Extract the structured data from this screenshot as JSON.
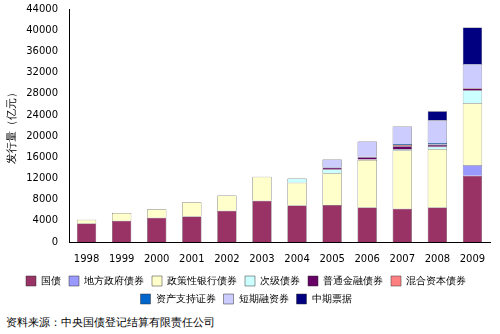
{
  "chart_data": {
    "type": "bar",
    "stacked": true,
    "grid": false,
    "legend": "bottom",
    "y_label": "发行量（亿元）",
    "annotation": "资料来源：中央国债登记结算有限责任公司",
    "categories": [
      "1998",
      "1999",
      "2000",
      "2001",
      "2002",
      "2003",
      "2004",
      "2005",
      "2006",
      "2007",
      "2008",
      "2009"
    ],
    "ylim": [
      0,
      44000
    ],
    "yticks": [
      0,
      4000,
      8000,
      12000,
      16000,
      20000,
      24000,
      28000,
      32000,
      36000,
      40000,
      44000
    ],
    "series": [
      {
        "name": "国债",
        "color": "#993366",
        "values": [
          3500,
          4000,
          4600,
          4800,
          5900,
          7800,
          6900,
          7000,
          6500,
          6300,
          6500,
          12500
        ]
      },
      {
        "name": "地方政府债券",
        "color": "#9999ff",
        "values": [
          0,
          0,
          0,
          0,
          0,
          0,
          0,
          0,
          0,
          0,
          0,
          2000
        ]
      },
      {
        "name": "政策性银行债券",
        "color": "#ffffcc",
        "values": [
          700,
          1500,
          1600,
          2700,
          2900,
          4500,
          4300,
          6000,
          9000,
          11000,
          11000,
          11700
        ]
      },
      {
        "name": "次级债券",
        "color": "#ccffff",
        "values": [
          0,
          0,
          0,
          0,
          0,
          0,
          800,
          700,
          100,
          200,
          500,
          2400
        ]
      },
      {
        "name": "普通金融债券",
        "color": "#660066",
        "values": [
          0,
          0,
          0,
          0,
          0,
          0,
          0,
          300,
          400,
          600,
          300,
          400
        ]
      },
      {
        "name": "混合资本债券",
        "color": "#ff8080",
        "values": [
          0,
          0,
          0,
          0,
          0,
          0,
          0,
          0,
          0,
          200,
          100,
          100
        ]
      },
      {
        "name": "资产支持证券",
        "color": "#0066cc",
        "values": [
          0,
          0,
          0,
          0,
          0,
          0,
          0,
          100,
          100,
          200,
          300,
          0
        ]
      },
      {
        "name": "短期融资券",
        "color": "#ccccff",
        "values": [
          0,
          0,
          0,
          0,
          0,
          0,
          0,
          1500,
          2900,
          3300,
          4300,
          4500
        ]
      },
      {
        "name": "中期票据",
        "color": "#000080",
        "values": [
          0,
          0,
          0,
          0,
          0,
          0,
          0,
          0,
          0,
          0,
          1700,
          6900
        ]
      }
    ]
  }
}
